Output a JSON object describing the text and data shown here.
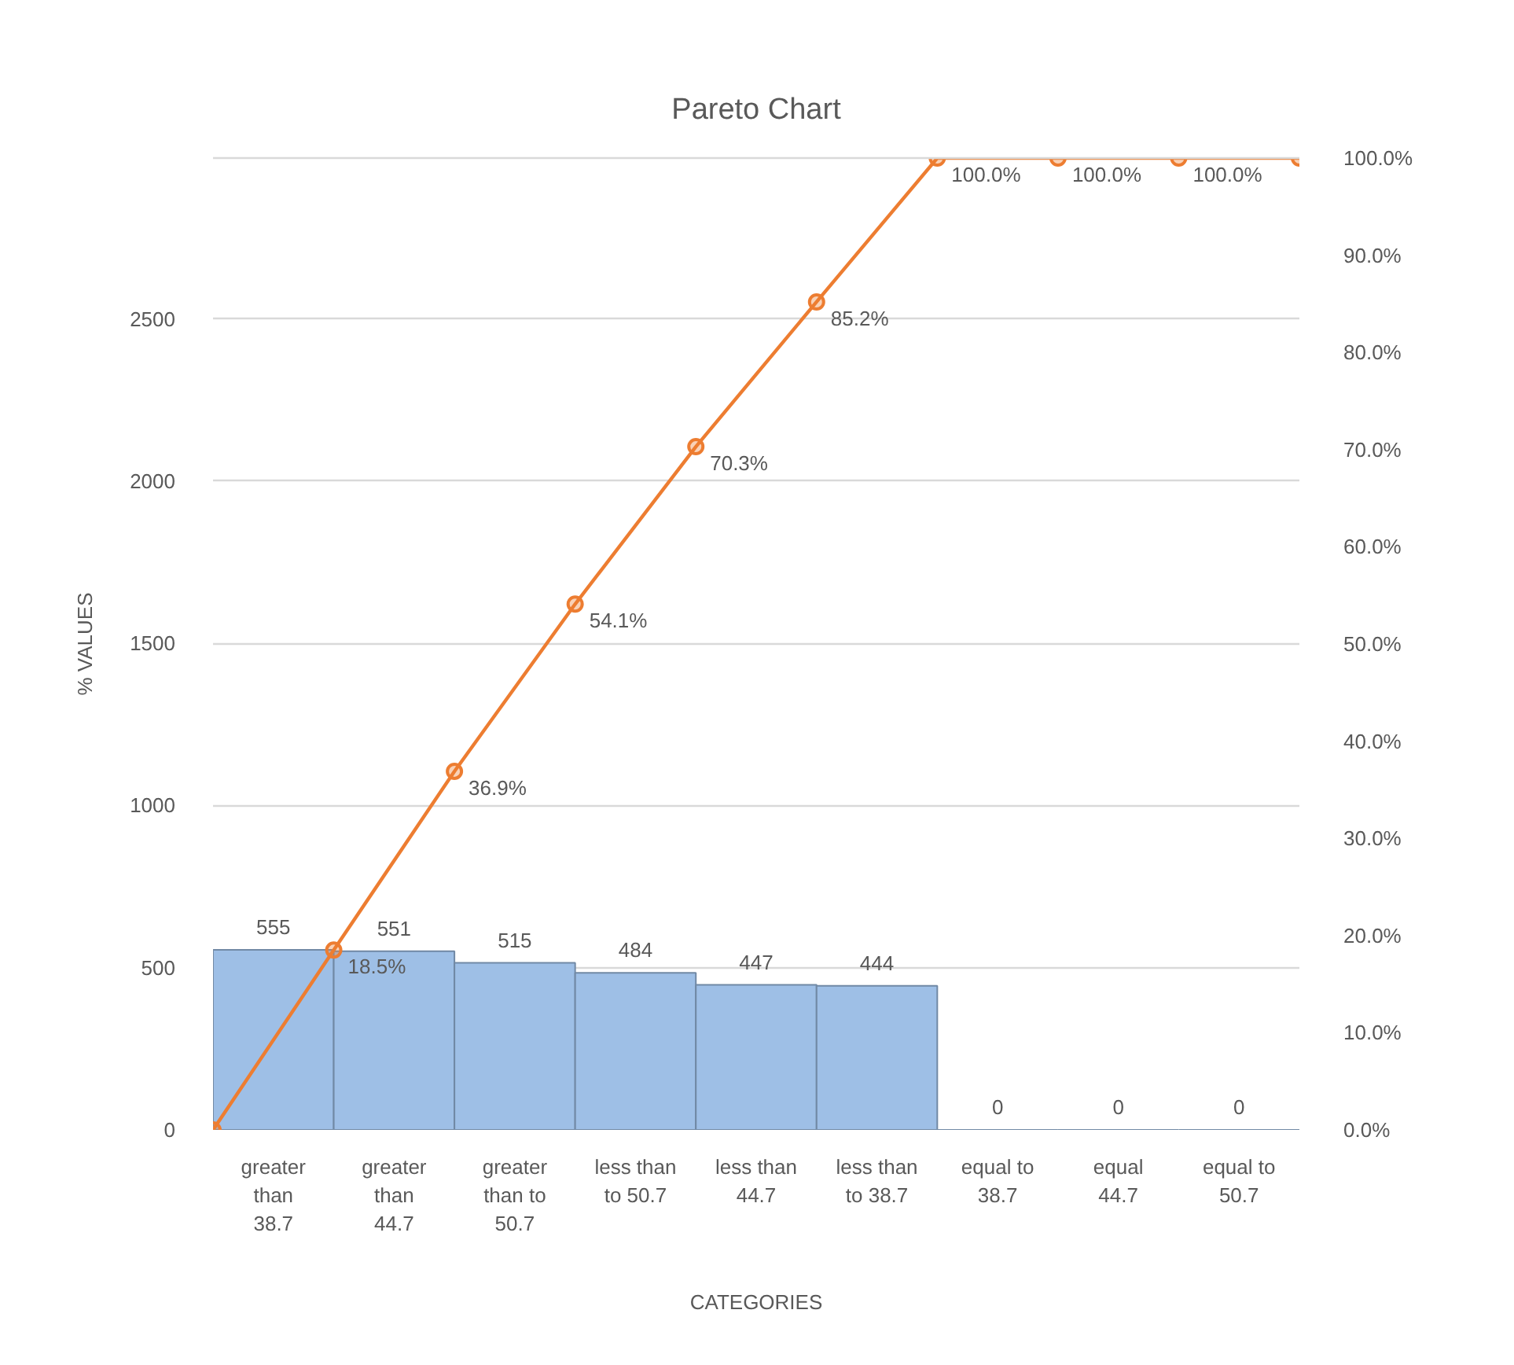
{
  "chart_data": {
    "type": "bar",
    "title": "Pareto Chart",
    "xlabel": "CATEGORIES",
    "ylabel": "% VALUES",
    "categories": [
      null,
      "greater than 38.7",
      null,
      "greater than 44.7",
      null,
      "greater than to 50.7",
      null,
      "less than to 50.7",
      null,
      "less than 44.7",
      null,
      "less than to 38.7",
      null,
      "equal to 38.7",
      null,
      "equal 44.7",
      null,
      "equal to 50.7",
      null
    ],
    "series": [
      {
        "color": "#9ebfe6",
        "values": [
          null,
          555,
          null,
          551,
          null,
          515,
          null,
          484,
          null,
          447,
          null,
          444,
          null,
          0,
          null,
          0,
          null,
          0,
          null
        ]
      },
      {
        "type": "line",
        "axis": "y2",
        "color": "#ed7d31",
        "values": [
          0,
          null,
          18.5,
          null,
          36.9,
          null,
          54.1,
          null,
          70.3,
          null,
          85.2,
          null,
          100.0,
          null,
          100.0,
          null,
          100.0,
          null,
          100.0
        ],
        "value_labels": [
          null,
          null,
          "18.5%",
          null,
          "36.9%",
          null,
          "54.1%",
          null,
          "70.3%",
          null,
          "85.2%",
          null,
          "100.0%",
          null,
          "100.0%",
          null,
          "100.0%",
          null,
          null
        ]
      }
    ],
    "ylim": [
      0,
      2996
    ],
    "yticks": [
      0,
      500,
      1000,
      1500,
      2000,
      2500
    ],
    "y2lim": [
      0,
      100
    ],
    "y2ticks": [
      {
        "value": 0,
        "label": "0.0%"
      },
      {
        "value": 10,
        "label": "10.0%"
      },
      {
        "value": 20,
        "label": "20.0%"
      },
      {
        "value": 30,
        "label": "30.0%"
      },
      {
        "value": 40,
        "label": "40.0%"
      },
      {
        "value": 50,
        "label": "50.0%"
      },
      {
        "value": 60,
        "label": "60.0%"
      },
      {
        "value": 70,
        "label": "70.0%"
      },
      {
        "value": 80,
        "label": "80.0%"
      },
      {
        "value": 90,
        "label": "90.0%"
      },
      {
        "value": 100,
        "label": "100.0%"
      }
    ],
    "grid": "y",
    "data_labels": true,
    "marker": "circle"
  }
}
